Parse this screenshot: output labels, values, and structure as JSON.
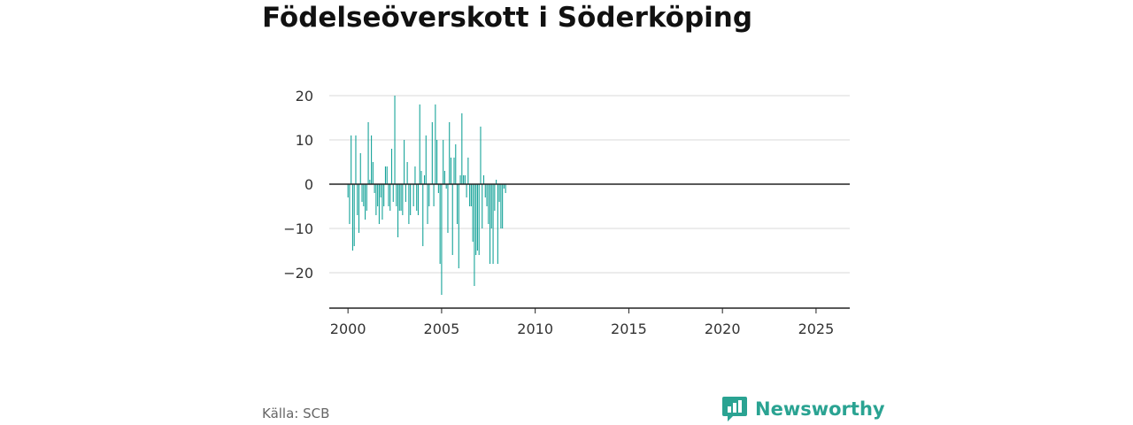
{
  "chart_title": "Födelseöverskott i Söderköping",
  "source": "Källa: SCB",
  "brand": {
    "name": "Newsworthy",
    "icon": "newsworthy-logo-icon",
    "color": "#2aa392"
  },
  "colors": {
    "bar": "#16a399",
    "zero_line": "#222222",
    "grid": "#d9d9d9",
    "axis": "#222222"
  },
  "chart_data": {
    "type": "bar",
    "title": "Födelseöverskott i Söderköping",
    "xlabel": "",
    "ylabel": "",
    "frequency": "monthly",
    "x_start": "2000-01",
    "ylim": [
      -28,
      22
    ],
    "yticks": [
      -20,
      -10,
      0,
      10,
      20
    ],
    "ytick_labels": [
      "−20",
      "−10",
      "0",
      "10",
      "20"
    ],
    "xlim": [
      1999,
      2026.8
    ],
    "xticks": [
      2000,
      2005,
      2010,
      2015,
      2020,
      2025
    ],
    "xtick_labels": [
      "2000",
      "2005",
      "2010",
      "2015",
      "2020",
      "2025"
    ],
    "grid": true,
    "legend": "none",
    "values": [
      -3,
      -9,
      11,
      -15,
      -14,
      11,
      -7,
      -11,
      7,
      -4,
      -5,
      -8,
      -6,
      14,
      1,
      11,
      5,
      -2,
      -7,
      -5,
      -9,
      -3,
      -8,
      -5,
      4,
      4,
      -5,
      -6,
      8,
      -4,
      20,
      -5,
      -12,
      -6,
      -6,
      -7,
      10,
      -4,
      5,
      -9,
      -7,
      0,
      -5,
      4,
      -6,
      -7,
      18,
      3,
      -14,
      2,
      11,
      -9,
      -5,
      0,
      14,
      -5,
      18,
      10,
      -2,
      -18,
      -25,
      10,
      3,
      -1,
      -11,
      14,
      6,
      -16,
      6,
      9,
      -9,
      -19,
      2,
      16,
      2,
      2,
      -3,
      6,
      -5,
      -5,
      -13,
      -23,
      -16,
      -15,
      -16,
      13,
      -10,
      2,
      -3,
      -5,
      -9,
      -18,
      -10,
      -18,
      -6,
      1,
      -18,
      -4,
      -10,
      -10,
      -1,
      -2
    ]
  }
}
